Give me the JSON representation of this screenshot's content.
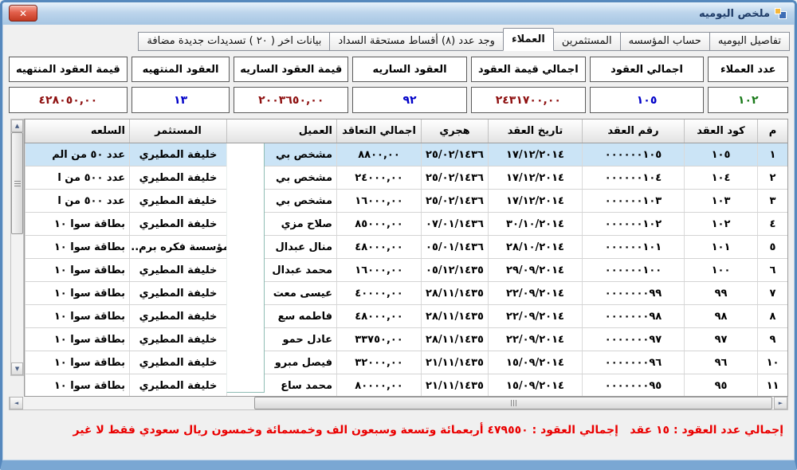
{
  "window": {
    "title": "ملخص اليوميه"
  },
  "icons": {
    "close_glyph": "✕",
    "scroll_up": "▲",
    "scroll_down": "▼",
    "scroll_left": "◄",
    "scroll_right": "►"
  },
  "colors": {
    "value_green": "#1a7a1a",
    "value_blue": "#0000c8",
    "value_maroon": "#8e1010",
    "footer_red": "#ea0000",
    "selected_row": "#cbe4f6"
  },
  "tabs": [
    {
      "label": "تفاصيل اليوميه",
      "active": false
    },
    {
      "label": "حساب المؤسسه",
      "active": false
    },
    {
      "label": "المستثمرين",
      "active": false
    },
    {
      "label": "العملاء",
      "active": true
    },
    {
      "label": "وجد عدد (٨) أقساط مستحقة السداد",
      "active": false
    },
    {
      "label": "بيانات اخر ( ٢٠ ) تسديدات جديدة مضافة",
      "active": false
    }
  ],
  "summary_boxes": [
    {
      "label": "عدد العملاء",
      "value": "١٠٢",
      "color": "#1a7a1a"
    },
    {
      "label": "اجمالي العقود",
      "value": "١٠٥",
      "color": "#0000c8"
    },
    {
      "label": "اجمالي قيمة العقود",
      "value": "٢٤٣١٧٠٠,٠٠",
      "color": "#8e1010"
    },
    {
      "label": "العقود الساريه",
      "value": "٩٢",
      "color": "#0000c8"
    },
    {
      "label": "قيمة العقود الساريه",
      "value": "٢٠٠٣٦٥٠,٠٠",
      "color": "#8e1010"
    },
    {
      "label": "العقود المنتهيه",
      "value": "١٣",
      "color": "#0000c8"
    },
    {
      "label": "قيمة العقود المنتهيه",
      "value": "٤٢٨٠٥٠,٠٠",
      "color": "#8e1010"
    }
  ],
  "table": {
    "headers": [
      "م",
      "كود العقد",
      "رقم العقد",
      "تاريخ العقد",
      "هجري",
      "اجمالي التعاقد",
      "العميل",
      "المستثمر",
      "السلعه"
    ],
    "selected_row_index": 0,
    "rows": [
      [
        "١",
        "١٠٥",
        "٠٠٠٠٠٠١٠٥",
        "١٧/١٢/٢٠١٤",
        "٢٥/٠٢/١٤٣٦",
        "٨٨٠٠,٠٠",
        "مشخص بي",
        "خليفة المطيري",
        "عدد ٥٠ من الم"
      ],
      [
        "٢",
        "١٠٤",
        "٠٠٠٠٠٠١٠٤",
        "١٧/١٢/٢٠١٤",
        "٢٥/٠٢/١٤٣٦",
        "٢٤٠٠٠,٠٠",
        "مشخص بي",
        "خليفة المطيري",
        "عدد ٥٠٠ من ا"
      ],
      [
        "٣",
        "١٠٣",
        "٠٠٠٠٠٠١٠٣",
        "١٧/١٢/٢٠١٤",
        "٢٥/٠٢/١٤٣٦",
        "١٦٠٠٠,٠٠",
        "مشخص بي",
        "خليفة المطيري",
        "عدد ٥٠٠ من ا"
      ],
      [
        "٤",
        "١٠٢",
        "٠٠٠٠٠٠١٠٢",
        "٣٠/١٠/٢٠١٤",
        "٠٧/٠١/١٤٣٦",
        "٨٥٠٠٠,٠٠",
        "صلاح مزي",
        "خليفة المطيري",
        "بطاقة سوا ١٠"
      ],
      [
        "٥",
        "١٠١",
        "٠٠٠٠٠٠١٠١",
        "٢٨/١٠/٢٠١٤",
        "٠٥/٠١/١٤٣٦",
        "٤٨٠٠٠,٠٠",
        "منال عبدال",
        "مؤسسة فكره برم...",
        "بطاقة سوا ١٠"
      ],
      [
        "٦",
        "١٠٠",
        "٠٠٠٠٠٠١٠٠",
        "٢٩/٠٩/٢٠١٤",
        "٠٥/١٢/١٤٣٥",
        "١٦٠٠٠,٠٠",
        "محمد عبدال",
        "خليفة المطيري",
        "بطاقة سوا ١٠"
      ],
      [
        "٧",
        "٩٩",
        "٠٠٠٠٠٠٠٩٩",
        "٢٢/٠٩/٢٠١٤",
        "٢٨/١١/١٤٣٥",
        "٤٠٠٠٠,٠٠",
        "عيسى معت",
        "خليفة المطيري",
        "بطاقة سوا ١٠"
      ],
      [
        "٨",
        "٩٨",
        "٠٠٠٠٠٠٠٩٨",
        "٢٢/٠٩/٢٠١٤",
        "٢٨/١١/١٤٣٥",
        "٤٨٠٠٠,٠٠",
        "فاطمه سع",
        "خليفة المطيري",
        "بطاقة سوا ١٠"
      ],
      [
        "٩",
        "٩٧",
        "٠٠٠٠٠٠٠٩٧",
        "٢٢/٠٩/٢٠١٤",
        "٢٨/١١/١٤٣٥",
        "٣٣٧٥٠,٠٠",
        "عادل حمو",
        "خليفة المطيري",
        "بطاقة سوا ١٠"
      ],
      [
        "١٠",
        "٩٦",
        "٠٠٠٠٠٠٠٩٦",
        "١٥/٠٩/٢٠١٤",
        "٢١/١١/١٤٣٥",
        "٣٢٠٠٠,٠٠",
        "فيصل مبرو",
        "خليفة المطيري",
        "بطاقة سوا ١٠"
      ],
      [
        "١١",
        "٩٥",
        "٠٠٠٠٠٠٠٩٥",
        "١٥/٠٩/٢٠١٤",
        "٢١/١١/١٤٣٥",
        "٨٠٠٠٠,٠٠",
        "محمد ساع",
        "خليفة المطيري",
        "بطاقة سوا ١٠"
      ]
    ]
  },
  "footer": {
    "count_text": "إجمالي عدد العقود : ١٥ عقد",
    "amount_text": "إجمالي العقود : ٤٧٩٥٥٠ أربعمائة وتسعة وسبعون الف وخمسمائة وخمسون ريال سعودي فقط لا غير"
  }
}
